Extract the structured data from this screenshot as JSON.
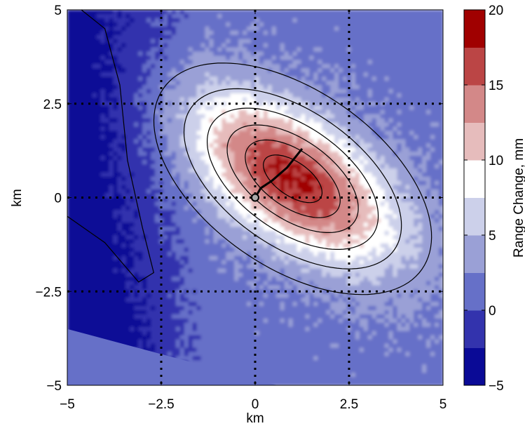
{
  "chart_data": {
    "type": "heatmap",
    "title": "",
    "xlabel": "km",
    "ylabel": "km",
    "xlim": [
      -5,
      5
    ],
    "ylim": [
      -5,
      5
    ],
    "xticks": [
      -5,
      -2.5,
      0,
      2.5,
      5
    ],
    "yticks": [
      -5,
      -2.5,
      0,
      2.5,
      5
    ],
    "xtick_labels": [
      "−5",
      "−2.5",
      "0",
      "2.5",
      "5"
    ],
    "ytick_labels": [
      "−5",
      "−2.5",
      "0",
      "2.5",
      "5"
    ],
    "grid": "dotted at ticks",
    "colorbar": {
      "label": "Range Change, mm",
      "range": [
        -5,
        20
      ],
      "ticks": [
        -5,
        0,
        5,
        10,
        15,
        20
      ],
      "tick_labels": [
        "−5",
        "0",
        "5",
        "10",
        "15",
        "20"
      ],
      "levels": [
        {
          "from": -5,
          "to": -2.5,
          "color": "#0a0a96"
        },
        {
          "from": -2.5,
          "to": 0,
          "color": "#3333ad"
        },
        {
          "from": 0,
          "to": 2.5,
          "color": "#6670c8"
        },
        {
          "from": 2.5,
          "to": 5,
          "color": "#9aa0d6"
        },
        {
          "from": 5,
          "to": 7.5,
          "color": "#ccd0ea"
        },
        {
          "from": 7.5,
          "to": 10,
          "color": "#ffffff"
        },
        {
          "from": 10,
          "to": 12.5,
          "color": "#e6bcbc"
        },
        {
          "from": 12.5,
          "to": 15,
          "color": "#d38888"
        },
        {
          "from": 15,
          "to": 17.5,
          "color": "#bb4545"
        },
        {
          "from": 17.5,
          "to": 20,
          "color": "#a00000"
        }
      ]
    },
    "field": {
      "center": [
        1.0,
        0.5
      ],
      "peak": 18,
      "orientation_deg": -35,
      "semi_axis_long_km": 3.6,
      "semi_axis_short_km": 1.8,
      "background": 1.5
    },
    "model_contours": {
      "center": [
        1.0,
        0.5
      ],
      "orientation_deg": -35,
      "ellipses": [
        [
          0.9,
          0.45
        ],
        [
          1.45,
          0.75
        ],
        [
          2.0,
          1.05
        ],
        [
          2.6,
          1.4
        ],
        [
          3.3,
          1.8
        ],
        [
          4.2,
          2.35
        ]
      ]
    },
    "trace": [
      [
        0,
        0
      ],
      [
        0.15,
        0.25
      ],
      [
        0.45,
        0.45
      ],
      [
        0.85,
        0.8
      ],
      [
        1.25,
        1.3
      ]
    ],
    "marker": [
      0,
      0
    ],
    "no_data_triangle": [
      [
        -5,
        -3.5
      ],
      [
        -5,
        -5
      ],
      [
        0.6,
        -5
      ]
    ]
  }
}
